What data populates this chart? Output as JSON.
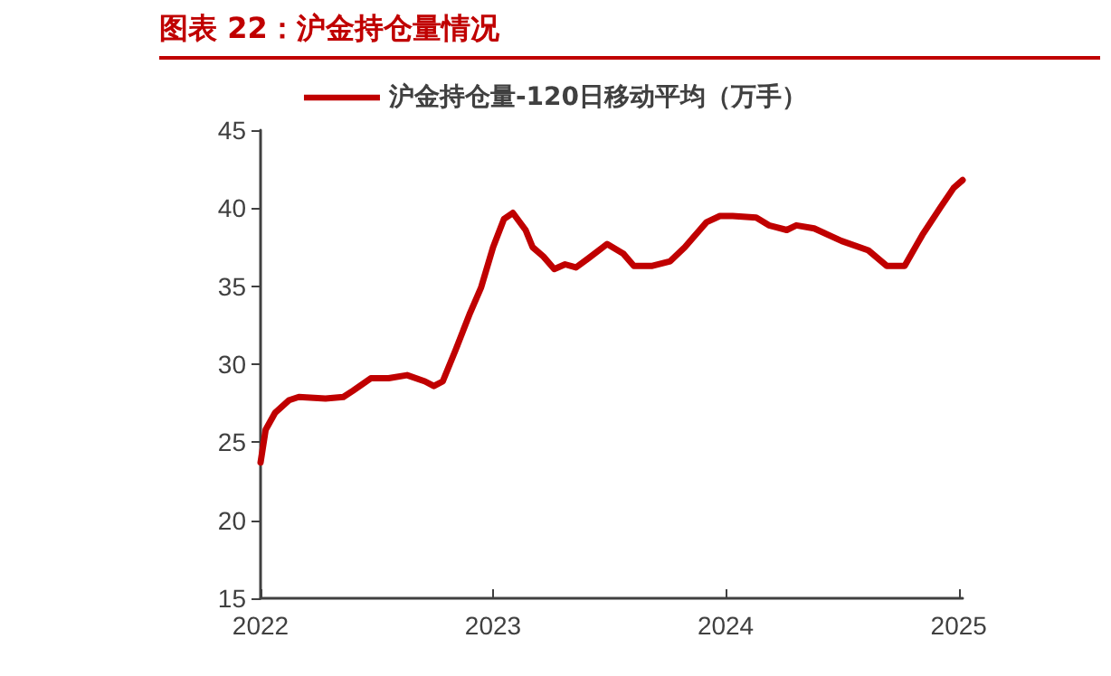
{
  "chart_data": {
    "type": "line",
    "title": "图表 22：沪金持仓量情况",
    "x": [
      "2022-01-01",
      "2022-01-09",
      "2022-01-24",
      "2022-02-15",
      "2022-03-02",
      "2022-04-13",
      "2022-05-11",
      "2022-05-26",
      "2022-06-23",
      "2022-07-21",
      "2022-08-19",
      "2022-09-16",
      "2022-09-30",
      "2022-10-14",
      "2022-11-03",
      "2022-11-26",
      "2022-12-13",
      "2023-01-01",
      "2023-01-18",
      "2023-02-01",
      "2023-02-21",
      "2023-03-04",
      "2023-03-21",
      "2023-04-07",
      "2023-04-24",
      "2023-05-11",
      "2023-05-31",
      "2023-06-29",
      "2023-07-24",
      "2023-08-10",
      "2023-09-08",
      "2023-10-06",
      "2023-10-29",
      "2023-12-02",
      "2023-12-23",
      "2024-01-12",
      "2024-02-18",
      "2024-03-09",
      "2024-04-06",
      "2024-04-21",
      "2024-05-19",
      "2024-07-01",
      "2024-08-12",
      "2024-09-10",
      "2024-10-08",
      "2024-11-05",
      "2024-12-04",
      "2024-12-24",
      "2025-01-07"
    ],
    "series": [
      {
        "name": "沪金持仓量-120日移动平均（万手）",
        "color": "#c00000",
        "values": [
          23.7,
          25.8,
          26.9,
          27.7,
          27.9,
          27.8,
          27.9,
          28.3,
          29.1,
          29.1,
          29.3,
          28.9,
          28.6,
          28.9,
          30.9,
          33.3,
          34.9,
          37.5,
          39.3,
          39.7,
          38.6,
          37.5,
          36.9,
          36.1,
          36.4,
          36.2,
          36.8,
          37.7,
          37.1,
          36.3,
          36.3,
          36.6,
          37.5,
          39.1,
          39.5,
          39.5,
          39.4,
          38.9,
          38.6,
          38.9,
          38.7,
          37.9,
          37.3,
          36.3,
          36.3,
          38.3,
          40.1,
          41.3,
          41.8
        ]
      }
    ],
    "xlim": [
      "2022-01-01",
      "2025-01-07"
    ],
    "xticks": [
      "2022",
      "2023",
      "2024",
      "2025"
    ],
    "ylim": [
      15,
      45
    ],
    "yticks": [
      15,
      20,
      25,
      30,
      35,
      40,
      45
    ],
    "legend": "top",
    "grid": false,
    "marker": "none",
    "line_style": "solid"
  }
}
